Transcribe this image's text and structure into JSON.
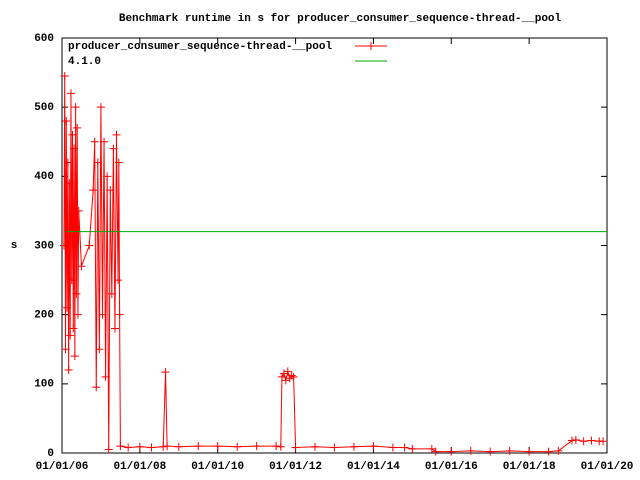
{
  "chart_data": {
    "type": "line",
    "title": "Benchmark runtime in s for producer_consumer_sequence-thread-__pool",
    "y_label": "s",
    "series": [
      {
        "name": "producer_consumer_sequence-thread-__pool",
        "color": "#ff0000",
        "marker": "+",
        "x": [
          2006.05,
          2006.07,
          2006.09,
          2006.11,
          2006.13,
          2006.15,
          2006.17,
          2006.19,
          2006.21,
          2006.23,
          2006.25,
          2006.27,
          2006.29,
          2006.31,
          2006.33,
          2006.35,
          2006.37,
          2006.39,
          2006.41,
          2006.43,
          2006.5,
          2006.7,
          2006.8,
          2006.84,
          2006.88,
          2006.92,
          2006.96,
          2007.0,
          2007.04,
          2007.08,
          2007.12,
          2007.16,
          2007.2,
          2007.24,
          2007.28,
          2007.32,
          2007.36,
          2007.4,
          2007.44,
          2007.46,
          2007.48,
          2007.5,
          2007.7,
          2008.0,
          2008.3,
          2008.6,
          2008.66,
          2008.7,
          2009.0,
          2009.5,
          2010.0,
          2010.5,
          2011.0,
          2011.5,
          2011.62,
          2011.65,
          2011.7,
          2011.75,
          2011.8,
          2011.85,
          2011.9,
          2011.95,
          2012.0,
          2012.5,
          2013.0,
          2013.5,
          2014.0,
          2014.5,
          2014.8,
          2015.0,
          2015.5,
          2015.6,
          2016.0,
          2016.5,
          2017.0,
          2017.5,
          2018.0,
          2018.5,
          2018.75,
          2019.1,
          2019.2,
          2019.4,
          2019.6,
          2019.8,
          2019.9
        ],
        "values": [
          300,
          545,
          150,
          480,
          210,
          420,
          120,
          390,
          170,
          520,
          250,
          460,
          180,
          440,
          140,
          500,
          230,
          470,
          200,
          350,
          270,
          300,
          380,
          450,
          95,
          420,
          150,
          500,
          200,
          450,
          110,
          400,
          5,
          380,
          230,
          440,
          180,
          460,
          250,
          420,
          200,
          10,
          8,
          9,
          8,
          9,
          117,
          10,
          9,
          10,
          10,
          9,
          10,
          10,
          9,
          110,
          115,
          105,
          118,
          108,
          112,
          110,
          8,
          9,
          8,
          9,
          10,
          8,
          8,
          6,
          6,
          2,
          2,
          3,
          2,
          3,
          2,
          2,
          3,
          18,
          19,
          17,
          18,
          17,
          17
        ]
      },
      {
        "name": "4.1.0",
        "color": "#00aa00",
        "x": [
          2006.1,
          2020
        ],
        "values": [
          320,
          320
        ]
      }
    ],
    "xlim": [
      2006,
      2020
    ],
    "xticks": [
      {
        "value": 2006,
        "label": "01/01/06"
      },
      {
        "value": 2008,
        "label": "01/01/08"
      },
      {
        "value": 2010,
        "label": "01/01/10"
      },
      {
        "value": 2012,
        "label": "01/01/12"
      },
      {
        "value": 2014,
        "label": "01/01/14"
      },
      {
        "value": 2016,
        "label": "01/01/16"
      },
      {
        "value": 2018,
        "label": "01/01/18"
      },
      {
        "value": 2020,
        "label": "01/01/20"
      }
    ],
    "ylim": [
      0,
      600
    ],
    "yticks": [
      0,
      100,
      200,
      300,
      400,
      500,
      600
    ],
    "legend": "top-left"
  }
}
